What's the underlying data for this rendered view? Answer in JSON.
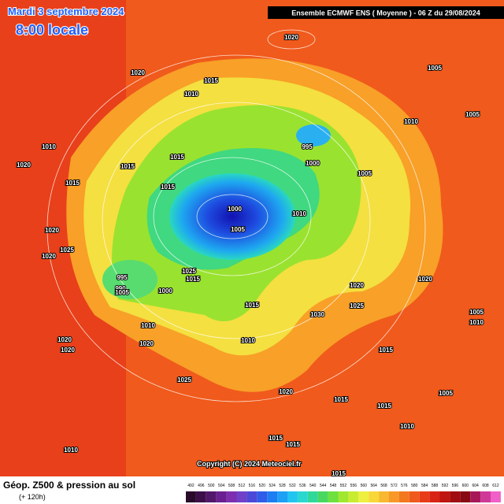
{
  "header": {
    "date": "Mardi 3 septembre 2024",
    "time": "8:00 locale",
    "model": "Ensemble ECMWF ENS  ( Moyenne )  -  06 Z du 29/08/2024"
  },
  "copyright": "Copyright (C) 2024 Meteociel.fr",
  "footer": {
    "title": "Géop. Z500 & pression au sol",
    "lead": "(+ 120h)"
  },
  "isobar_labels": [
    "1020",
    "1020",
    "1015",
    "1010",
    "1005",
    "1010",
    "1005",
    "995",
    "1000",
    "1005",
    "1000",
    "1005",
    "1010",
    "1015",
    "1015",
    "1015",
    "1010",
    "1020",
    "1015",
    "1020",
    "1020",
    "1025",
    "995",
    "990",
    "1005",
    "1000",
    "1025",
    "1015",
    "1015",
    "1010",
    "1030",
    "1025",
    "1020",
    "1020",
    "1010",
    "1020",
    "1020",
    "1020",
    "1025",
    "1015",
    "1005",
    "1015",
    "1020",
    "1015",
    "1010",
    "1015",
    "1010",
    "1015",
    "1015",
    "1010",
    "1005"
  ],
  "scale": {
    "labels": [
      492,
      496,
      500,
      504,
      508,
      512,
      516,
      520,
      524,
      528,
      532,
      536,
      540,
      544,
      548,
      552,
      556,
      560,
      564,
      568,
      572,
      576,
      580,
      584,
      588,
      592,
      596,
      600,
      604,
      608,
      612
    ],
    "colors": [
      "#2a0a2a",
      "#3d0f4a",
      "#52176b",
      "#6a2090",
      "#7d2fb0",
      "#7040c8",
      "#4c48d8",
      "#2f5ce8",
      "#1e7df0",
      "#1ea0f5",
      "#22c4f0",
      "#2ad8d0",
      "#30d89a",
      "#48d860",
      "#6ee040",
      "#a0e830",
      "#c8ec30",
      "#eef040",
      "#f8d838",
      "#f8b830",
      "#f89828",
      "#f47820",
      "#f05a1c",
      "#e83c18",
      "#d82414",
      "#c01410",
      "#a00c10",
      "#880814",
      "#a81858",
      "#d03898",
      "#f060c8"
    ]
  }
}
